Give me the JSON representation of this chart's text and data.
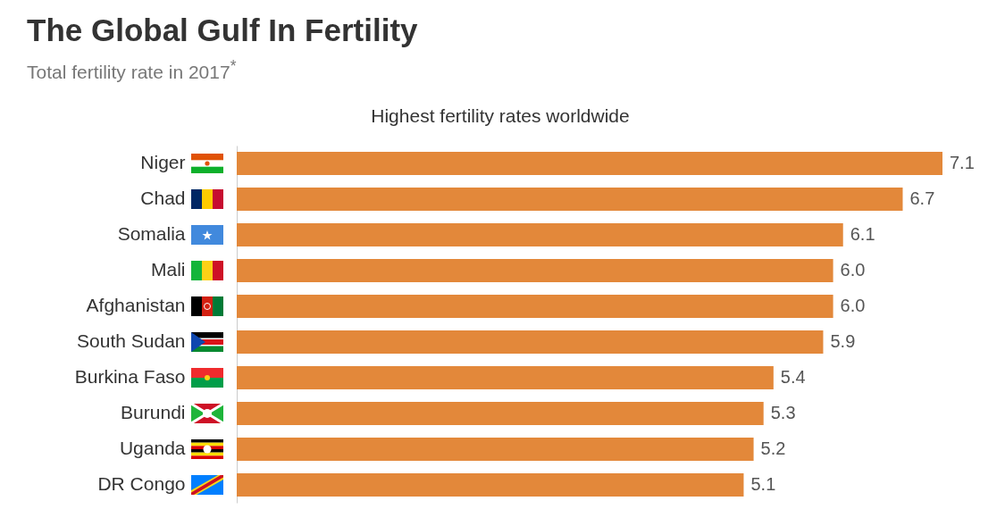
{
  "chart_data": {
    "type": "bar",
    "orientation": "horizontal",
    "title": "The Global Gulf In Fertility",
    "subtitle": "Total fertility rate in 2017$^{*}$",
    "annotations": [
      "Highest fertility rates worldwide"
    ],
    "categories": [
      "Niger",
      "Chad",
      "Somalia",
      "Mali",
      "Afghanistan",
      "South Sudan",
      "Burkina Faso",
      "Burundi",
      "Uganda",
      "DR Congo"
    ],
    "values": [
      7.1,
      6.7,
      6.1,
      6.0,
      6.0,
      5.9,
      5.4,
      5.3,
      5.2,
      5.1
    ],
    "value_labels": [
      "7.1",
      "6.7",
      "6.1",
      "6.0",
      "6.0",
      "5.9",
      "5.4",
      "5.3",
      "5.2",
      "5.1"
    ],
    "color": "#e3883a"
  }
}
